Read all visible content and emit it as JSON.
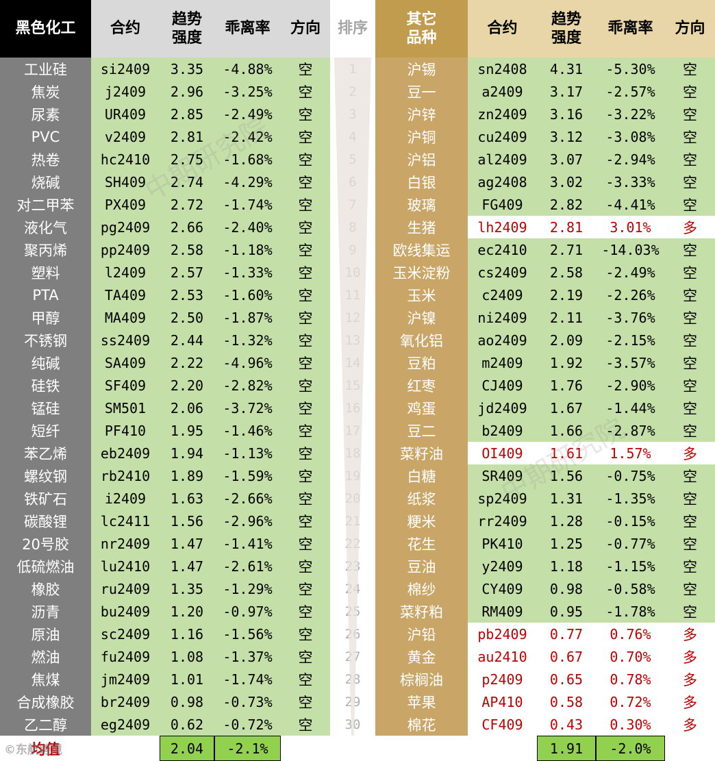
{
  "headers": {
    "left_sector": "黑色化工",
    "contract": "合约",
    "trend_strength": [
      "趋势",
      "强度"
    ],
    "deviation": "乖离率",
    "direction": "方向",
    "rank": "排序",
    "right_sector": [
      "其它",
      "品种"
    ]
  },
  "left_rows": [
    {
      "name": "工业硅",
      "contract": "si2409",
      "strength": "3.35",
      "deviation": "-4.88%",
      "direction": "空"
    },
    {
      "name": "焦炭",
      "contract": "j2409",
      "strength": "2.96",
      "deviation": "-3.25%",
      "direction": "空"
    },
    {
      "name": "尿素",
      "contract": "UR409",
      "strength": "2.85",
      "deviation": "-2.49%",
      "direction": "空"
    },
    {
      "name": "PVC",
      "contract": "v2409",
      "strength": "2.81",
      "deviation": "-2.42%",
      "direction": "空"
    },
    {
      "name": "热卷",
      "contract": "hc2410",
      "strength": "2.75",
      "deviation": "-1.68%",
      "direction": "空"
    },
    {
      "name": "烧碱",
      "contract": "SH409",
      "strength": "2.74",
      "deviation": "-4.29%",
      "direction": "空"
    },
    {
      "name": "对二甲苯",
      "contract": "PX409",
      "strength": "2.72",
      "deviation": "-1.74%",
      "direction": "空"
    },
    {
      "name": "液化气",
      "contract": "pg2409",
      "strength": "2.66",
      "deviation": "-2.40%",
      "direction": "空"
    },
    {
      "name": "聚丙烯",
      "contract": "pp2409",
      "strength": "2.58",
      "deviation": "-1.18%",
      "direction": "空"
    },
    {
      "name": "塑料",
      "contract": "l2409",
      "strength": "2.57",
      "deviation": "-1.33%",
      "direction": "空"
    },
    {
      "name": "PTA",
      "contract": "TA409",
      "strength": "2.53",
      "deviation": "-1.60%",
      "direction": "空"
    },
    {
      "name": "甲醇",
      "contract": "MA409",
      "strength": "2.50",
      "deviation": "-1.87%",
      "direction": "空"
    },
    {
      "name": "不锈钢",
      "contract": "ss2409",
      "strength": "2.44",
      "deviation": "-1.32%",
      "direction": "空"
    },
    {
      "name": "纯碱",
      "contract": "SA409",
      "strength": "2.22",
      "deviation": "-4.96%",
      "direction": "空"
    },
    {
      "name": "硅铁",
      "contract": "SF409",
      "strength": "2.20",
      "deviation": "-2.82%",
      "direction": "空"
    },
    {
      "name": "锰硅",
      "contract": "SM501",
      "strength": "2.06",
      "deviation": "-3.72%",
      "direction": "空"
    },
    {
      "name": "短纤",
      "contract": "PF410",
      "strength": "1.95",
      "deviation": "-1.46%",
      "direction": "空"
    },
    {
      "name": "苯乙烯",
      "contract": "eb2409",
      "strength": "1.94",
      "deviation": "-1.13%",
      "direction": "空"
    },
    {
      "name": "螺纹钢",
      "contract": "rb2410",
      "strength": "1.89",
      "deviation": "-1.59%",
      "direction": "空"
    },
    {
      "name": "铁矿石",
      "contract": "i2409",
      "strength": "1.63",
      "deviation": "-2.66%",
      "direction": "空"
    },
    {
      "name": "碳酸锂",
      "contract": "lc2411",
      "strength": "1.56",
      "deviation": "-2.96%",
      "direction": "空"
    },
    {
      "name": "20号胶",
      "contract": "nr2409",
      "strength": "1.47",
      "deviation": "-1.41%",
      "direction": "空"
    },
    {
      "name": "低硫燃油",
      "contract": "lu2410",
      "strength": "1.47",
      "deviation": "-2.61%",
      "direction": "空"
    },
    {
      "name": "橡胶",
      "contract": "ru2409",
      "strength": "1.35",
      "deviation": "-1.29%",
      "direction": "空"
    },
    {
      "name": "沥青",
      "contract": "bu2409",
      "strength": "1.20",
      "deviation": "-0.97%",
      "direction": "空"
    },
    {
      "name": "原油",
      "contract": "sc2409",
      "strength": "1.16",
      "deviation": "-1.56%",
      "direction": "空"
    },
    {
      "name": "燃油",
      "contract": "fu2409",
      "strength": "1.08",
      "deviation": "-1.37%",
      "direction": "空"
    },
    {
      "name": "焦煤",
      "contract": "jm2409",
      "strength": "1.01",
      "deviation": "-1.74%",
      "direction": "空"
    },
    {
      "name": "合成橡胶",
      "contract": "br2409",
      "strength": "0.98",
      "deviation": "-0.73%",
      "direction": "空"
    },
    {
      "name": "乙二醇",
      "contract": "eg2409",
      "strength": "0.62",
      "deviation": "-0.72%",
      "direction": "空"
    }
  ],
  "ranks": [
    "1",
    "2",
    "3",
    "4",
    "5",
    "6",
    "7",
    "8",
    "9",
    "10",
    "11",
    "12",
    "13",
    "14",
    "15",
    "16",
    "17",
    "18",
    "19",
    "20",
    "21",
    "22",
    "23",
    "24",
    "25",
    "26",
    "27",
    "28",
    "29",
    "30"
  ],
  "right_rows": [
    {
      "name": "沪锡",
      "contract": "sn2408",
      "strength": "4.31",
      "deviation": "-5.30%",
      "direction": "空",
      "long": false
    },
    {
      "name": "豆一",
      "contract": "a2409",
      "strength": "3.17",
      "deviation": "-2.57%",
      "direction": "空",
      "long": false
    },
    {
      "name": "沪锌",
      "contract": "zn2409",
      "strength": "3.16",
      "deviation": "-3.22%",
      "direction": "空",
      "long": false
    },
    {
      "name": "沪铜",
      "contract": "cu2409",
      "strength": "3.12",
      "deviation": "-3.08%",
      "direction": "空",
      "long": false
    },
    {
      "name": "沪铝",
      "contract": "al2409",
      "strength": "3.07",
      "deviation": "-2.94%",
      "direction": "空",
      "long": false
    },
    {
      "name": "白银",
      "contract": "ag2408",
      "strength": "3.02",
      "deviation": "-3.33%",
      "direction": "空",
      "long": false
    },
    {
      "name": "玻璃",
      "contract": "FG409",
      "strength": "2.82",
      "deviation": "-4.41%",
      "direction": "空",
      "long": false
    },
    {
      "name": "生猪",
      "contract": "lh2409",
      "strength": "2.81",
      "deviation": "3.01%",
      "direction": "多",
      "long": true
    },
    {
      "name": "欧线集运",
      "contract": "ec2410",
      "strength": "2.71",
      "deviation": "-14.03%",
      "direction": "空",
      "long": false
    },
    {
      "name": "玉米淀粉",
      "contract": "cs2409",
      "strength": "2.58",
      "deviation": "-2.49%",
      "direction": "空",
      "long": false
    },
    {
      "name": "玉米",
      "contract": "c2409",
      "strength": "2.19",
      "deviation": "-2.26%",
      "direction": "空",
      "long": false
    },
    {
      "name": "沪镍",
      "contract": "ni2409",
      "strength": "2.11",
      "deviation": "-3.76%",
      "direction": "空",
      "long": false
    },
    {
      "name": "氧化铝",
      "contract": "ao2409",
      "strength": "2.09",
      "deviation": "-2.15%",
      "direction": "空",
      "long": false
    },
    {
      "name": "豆粕",
      "contract": "m2409",
      "strength": "1.92",
      "deviation": "-3.57%",
      "direction": "空",
      "long": false
    },
    {
      "name": "红枣",
      "contract": "CJ409",
      "strength": "1.76",
      "deviation": "-2.90%",
      "direction": "空",
      "long": false
    },
    {
      "name": "鸡蛋",
      "contract": "jd2409",
      "strength": "1.67",
      "deviation": "-1.44%",
      "direction": "空",
      "long": false
    },
    {
      "name": "豆二",
      "contract": "b2409",
      "strength": "1.66",
      "deviation": "-2.87%",
      "direction": "空",
      "long": false
    },
    {
      "name": "菜籽油",
      "contract": "OI409",
      "strength": "1.61",
      "deviation": "1.57%",
      "direction": "多",
      "long": true
    },
    {
      "name": "白糖",
      "contract": "SR409",
      "strength": "1.56",
      "deviation": "-0.75%",
      "direction": "空",
      "long": false
    },
    {
      "name": "纸浆",
      "contract": "sp2409",
      "strength": "1.31",
      "deviation": "-1.35%",
      "direction": "空",
      "long": false
    },
    {
      "name": "粳米",
      "contract": "rr2409",
      "strength": "1.28",
      "deviation": "-0.15%",
      "direction": "空",
      "long": false
    },
    {
      "name": "花生",
      "contract": "PK410",
      "strength": "1.25",
      "deviation": "-0.77%",
      "direction": "空",
      "long": false
    },
    {
      "name": "豆油",
      "contract": "y2409",
      "strength": "1.18",
      "deviation": "-1.15%",
      "direction": "空",
      "long": false
    },
    {
      "name": "棉纱",
      "contract": "CY409",
      "strength": "0.98",
      "deviation": "-0.58%",
      "direction": "空",
      "long": false
    },
    {
      "name": "菜籽粕",
      "contract": "RM409",
      "strength": "0.95",
      "deviation": "-1.78%",
      "direction": "空",
      "long": false
    },
    {
      "name": "沪铅",
      "contract": "pb2409",
      "strength": "0.77",
      "deviation": "0.76%",
      "direction": "多",
      "long": true
    },
    {
      "name": "黄金",
      "contract": "au2410",
      "strength": "0.67",
      "deviation": "0.70%",
      "direction": "多",
      "long": true
    },
    {
      "name": "棕榈油",
      "contract": "p2409",
      "strength": "0.65",
      "deviation": "0.78%",
      "direction": "多",
      "long": true
    },
    {
      "name": "苹果",
      "contract": "AP410",
      "strength": "0.58",
      "deviation": "0.72%",
      "direction": "多",
      "long": true
    },
    {
      "name": "棉花",
      "contract": "CF409",
      "strength": "0.43",
      "deviation": "0.30%",
      "direction": "多",
      "long": true
    }
  ],
  "footer": {
    "label": "均值",
    "left_avg_strength": "2.04",
    "left_avg_deviation": "-2.1%",
    "right_avg_strength": "1.91",
    "right_avg_deviation": "-2.0%"
  },
  "watermark": "中期研究院",
  "brand": "©东航跨境",
  "colors": {
    "left_header": "#000000",
    "left_name": "#7f7f7f",
    "right_header": "#c19c4e",
    "right_name": "#c9a668",
    "short_cell": "#c5dfa8",
    "long_text": "#c00000",
    "avg_cell": "#92d050"
  }
}
